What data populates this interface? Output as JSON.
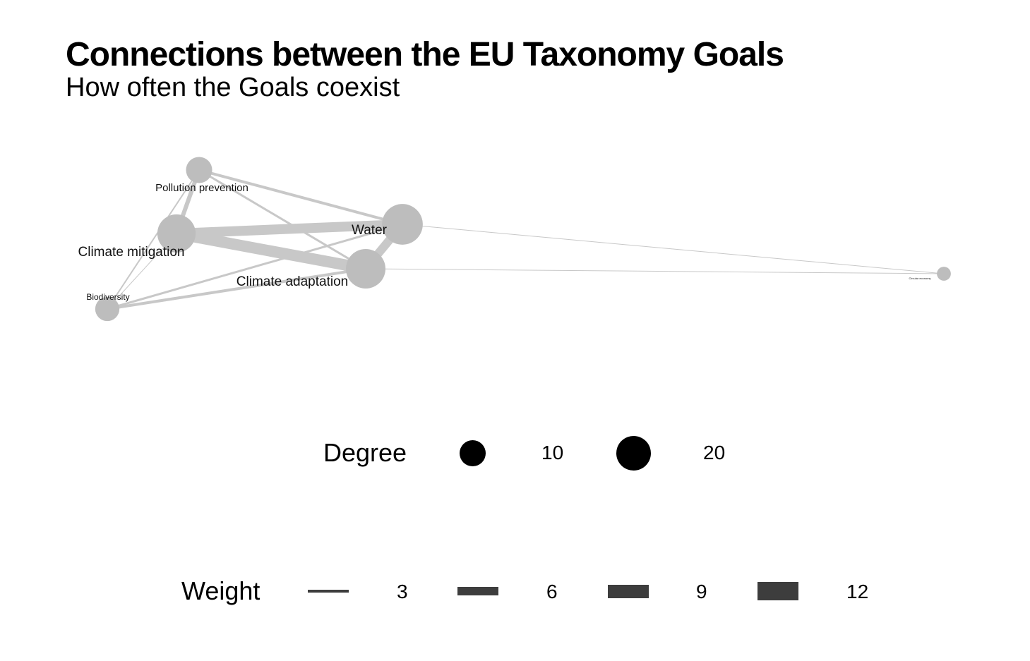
{
  "title": "Connections between the EU Taxonomy Goals",
  "subtitle": "How often the Goals coexist",
  "colors": {
    "node": "#bdbdbd",
    "edge": "#c8c8c8",
    "legend_dot": "#000000",
    "legend_bar": "#3d3d3d"
  },
  "chart_data": {
    "type": "network",
    "nodes": [
      {
        "id": "pollution",
        "label": "Pollution prevention",
        "degree": 7
      },
      {
        "id": "mitigation",
        "label": "Climate mitigation",
        "degree": 15
      },
      {
        "id": "biodiversity",
        "label": "Biodiversity",
        "degree": 6
      },
      {
        "id": "water",
        "label": "Water",
        "degree": 17
      },
      {
        "id": "adaptation",
        "label": "Climate adaptation",
        "degree": 16
      },
      {
        "id": "circular",
        "label": "Circular economy",
        "degree": 2
      }
    ],
    "edges": [
      {
        "source": "mitigation",
        "target": "adaptation",
        "weight": 8
      },
      {
        "source": "mitigation",
        "target": "water",
        "weight": 7
      },
      {
        "source": "water",
        "target": "adaptation",
        "weight": 6
      },
      {
        "source": "pollution",
        "target": "mitigation",
        "weight": 3
      },
      {
        "source": "pollution",
        "target": "water",
        "weight": 2
      },
      {
        "source": "pollution",
        "target": "adaptation",
        "weight": 1.5
      },
      {
        "source": "biodiversity",
        "target": "adaptation",
        "weight": 2
      },
      {
        "source": "biodiversity",
        "target": "water",
        "weight": 1.5
      },
      {
        "source": "biodiversity",
        "target": "pollution",
        "weight": 1
      },
      {
        "source": "biodiversity",
        "target": "mitigation",
        "weight": 0.5
      },
      {
        "source": "water",
        "target": "circular",
        "weight": 0.5
      },
      {
        "source": "adaptation",
        "target": "circular",
        "weight": 0.5
      }
    ],
    "legend_degree": {
      "title": "Degree",
      "ticks": [
        10,
        20
      ]
    },
    "legend_weight": {
      "title": "Weight",
      "ticks": [
        3,
        6,
        9,
        12
      ]
    }
  }
}
